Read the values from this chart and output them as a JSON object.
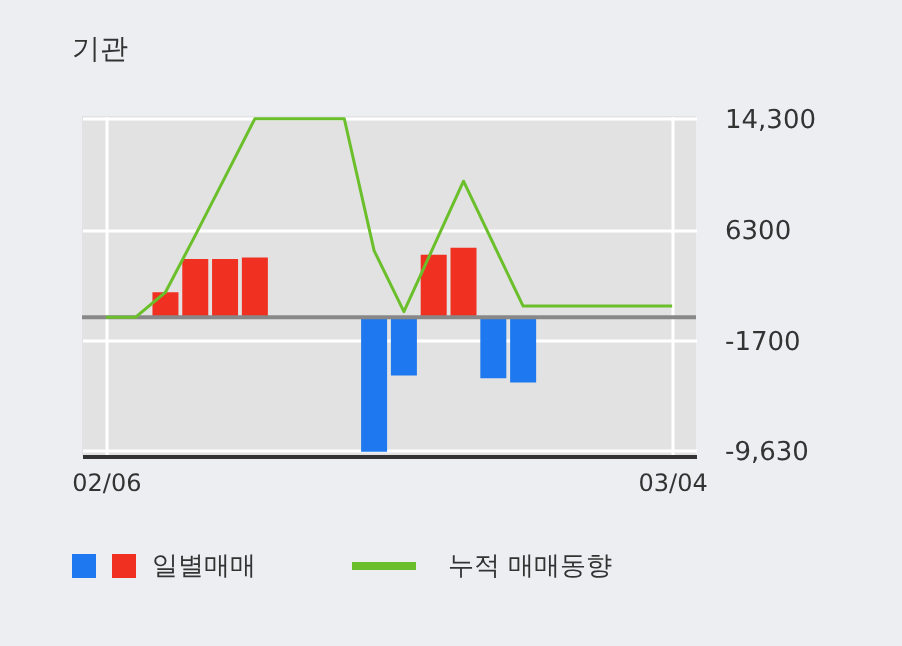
{
  "chart_data": {
    "type": "bar",
    "title": "기관",
    "categories": [
      "02/06",
      null,
      null,
      null,
      null,
      null,
      null,
      null,
      null,
      null,
      null,
      null,
      null,
      null,
      null,
      null,
      null,
      null,
      null,
      "03/04"
    ],
    "series": [
      {
        "name": "일별매매",
        "colors": [
          "#1e78f0",
          "#1e78f0",
          "#f03020",
          "#f03020",
          "#f03020",
          "#f03020",
          "#1e78f0",
          "#1e78f0",
          "#1e78f0",
          "#1e78f0",
          "#1e78f0",
          "#f03020",
          "#f03020",
          "#1e78f0",
          "#1e78f0",
          "#1e78f0",
          "#1e78f0",
          "#1e78f0",
          "#1e78f0",
          "#1e78f0"
        ],
        "values": [
          0,
          0,
          1800,
          4200,
          4200,
          4300,
          0,
          0,
          0,
          -9700,
          -4200,
          4500,
          5000,
          -4400,
          -4700,
          0,
          0,
          0,
          0,
          0
        ]
      },
      {
        "name": "누적 매매동향",
        "type": "line",
        "color": "#6abf2a",
        "values": [
          0,
          0,
          1800,
          5900,
          10100,
          14300,
          14300,
          14300,
          14300,
          4800,
          400,
          5100,
          9800,
          5300,
          800,
          800,
          800,
          800,
          800,
          800
        ]
      }
    ],
    "ylim": [
      -10000,
      14500
    ],
    "yticks": [
      {
        "value": 14300,
        "label": "14,300"
      },
      6300,
      -1700,
      {
        "value": -9630,
        "label": "-9,630"
      }
    ],
    "ref_lines": [
      {
        "axis": "y",
        "value": 0,
        "color": "#888888"
      }
    ],
    "grid": true,
    "legend": "bottom"
  }
}
